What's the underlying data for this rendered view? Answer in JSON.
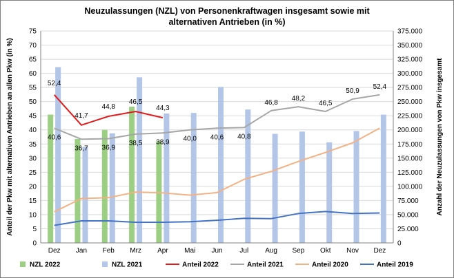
{
  "chart_data": {
    "type": "bar",
    "title_line1": "Neuzulassungen (NZL) von Personenkraftwagen insgesamt sowie mit",
    "title_line2": "alternativen Antrieben (in %)",
    "ylabel_left": "Anteil der Pkw mit alternativen Antrieben an allen Pkw (in %)",
    "ylabel_right": "Anzahl der Neuzulassungen von Pkw insgesamt",
    "categories": [
      "Dez",
      "Jan",
      "Feb",
      "Mrz",
      "Apr",
      "Mai",
      "Jun",
      "Jul",
      "Aug",
      "Sep",
      "Okt",
      "Nov",
      "Dez"
    ],
    "ylim_left": [
      0,
      75
    ],
    "ylim_right": [
      0,
      375000
    ],
    "yticks_left": [
      "0",
      "5",
      "10",
      "15",
      "20",
      "25",
      "30",
      "35",
      "40",
      "45",
      "50",
      "55",
      "60",
      "65",
      "70",
      "75"
    ],
    "yticks_right": [
      "0",
      "25.000",
      "50.000",
      "75.000",
      "100.000",
      "125.000",
      "150.000",
      "175.000",
      "200.000",
      "225.000",
      "250.000",
      "275.000",
      "300.000",
      "325.000",
      "350.000",
      "375.000"
    ],
    "grid": true,
    "legend_position": "bottom",
    "bar_series": [
      {
        "name": "NZL 2022",
        "color": "#9ccf83",
        "values": [
          227000,
          184000,
          200000,
          241000,
          180000,
          null,
          null,
          null,
          null,
          null,
          null,
          null,
          null
        ]
      },
      {
        "name": "NZL 2021",
        "color": "#b3c6e7",
        "values": [
          311000,
          170000,
          194000,
          293000,
          229000,
          230000,
          276000,
          236000,
          193000,
          197000,
          178000,
          198000,
          227000
        ]
      }
    ],
    "line_series": [
      {
        "name": "Anteil 2022",
        "color": "#e01c1c",
        "width": 2,
        "values": [
          52.4,
          41.7,
          44.8,
          46.5,
          44.3,
          null,
          null,
          null,
          null,
          null,
          null,
          null,
          null
        ]
      },
      {
        "name": "Anteil 2021",
        "color": "#a6a6a6",
        "width": 2,
        "values": [
          40.6,
          36.7,
          36.9,
          38.5,
          38.9,
          40.0,
          40.6,
          40.8,
          46.8,
          48.2,
          46.5,
          50.9,
          52.4
        ]
      },
      {
        "name": "Anteil 2020",
        "color": "#f4b183",
        "width": 2,
        "values": [
          11.0,
          15.7,
          16.0,
          18.0,
          17.7,
          16.9,
          17.8,
          22.5,
          25.3,
          28.8,
          32.0,
          35.4,
          40.6
        ]
      },
      {
        "name": "Anteil 2019",
        "color": "#4472c4",
        "width": 2,
        "values": [
          6.2,
          7.8,
          7.8,
          7.3,
          7.3,
          7.5,
          8.0,
          8.7,
          8.6,
          10.4,
          11.1,
          10.4,
          10.6
        ]
      }
    ],
    "data_labels": {
      "Anteil 2022": [
        "52,4",
        "41,7",
        "44,8",
        "46,5",
        "44,3"
      ],
      "Anteil 2021": [
        "40,6",
        "36,7",
        "36,9",
        "38,5",
        "38,9",
        "40,0",
        "40,6",
        "40,8",
        "46,8",
        "48,2",
        "46,5",
        "50,9",
        "52,4"
      ]
    }
  }
}
